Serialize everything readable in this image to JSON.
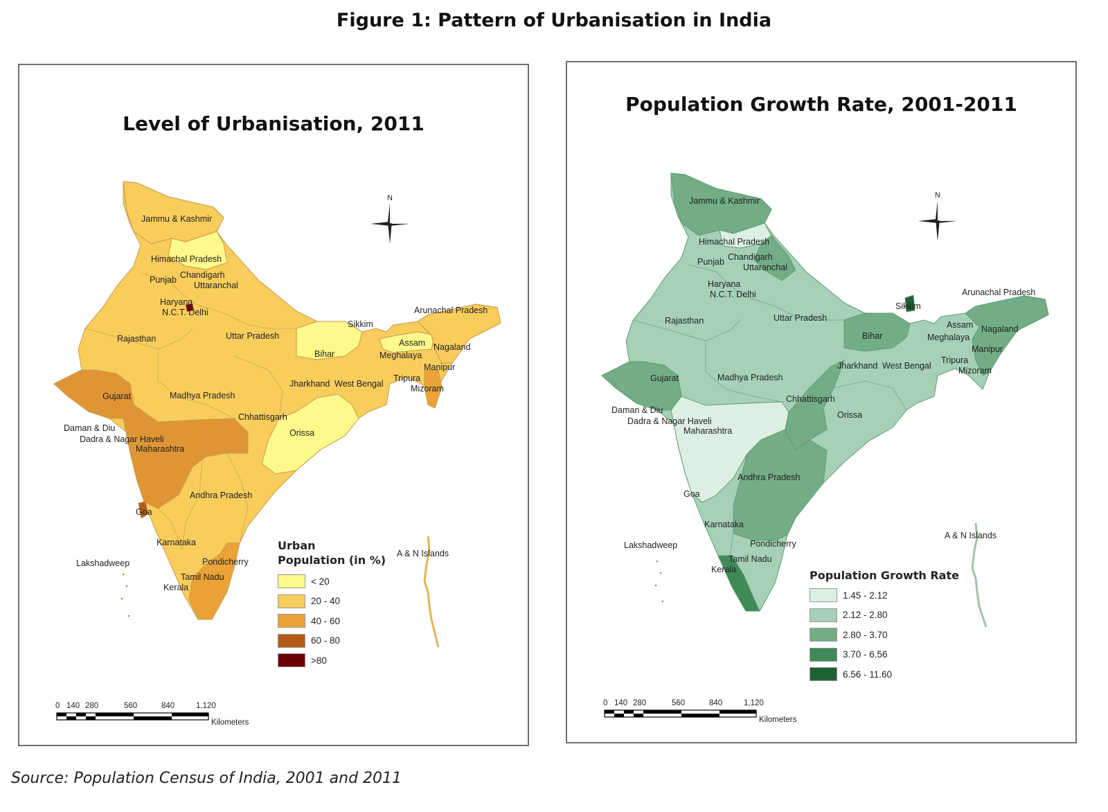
{
  "figure_title": "Figure 1: Pattern of Urbanisation in India",
  "source": "Source: Population Census of India, 2001 and 2011",
  "left_map": {
    "title": "Level of Urbanisation, 2011",
    "legend_title_line1": "Urban",
    "legend_title_line2": "Population (in %)",
    "legend": [
      {
        "label": "< 20",
        "color": "#fdf98a"
      },
      {
        "label": "20 - 40",
        "color": "#f8cd5c"
      },
      {
        "label": "40 - 60",
        "color": "#eba237"
      },
      {
        "label": "60 - 80",
        "color": "#b35b16"
      },
      {
        "label": ">80",
        "color": "#6b0007"
      }
    ],
    "state_colors": {
      "base": "#f8cd5c",
      "jk": "#f8cd5c",
      "hp": "#fdf98a",
      "guj": "#e09535",
      "mh": "#e09535",
      "tn": "#eba237",
      "bihar": "#fdf98a",
      "orissa": "#fdf98a",
      "assam": "#fdf98a",
      "ne": "#f8cd5c",
      "mizoram": "#eba237",
      "goa": "#b35b16",
      "delhi": "#6b0007",
      "islands": "#e2b453"
    },
    "labels": {
      "jk": "Jammu & Kashmir",
      "hp": "Himachal Pradesh",
      "punjab": "Punjab",
      "chandigarh": "Chandigarh",
      "uttaranchal": "Uttaranchal",
      "haryana": "Haryana",
      "delhi": "N.C.T. Delhi",
      "rajasthan": "Rajasthan",
      "up": "Uttar Pradesh",
      "sikkim": "Sikkim",
      "arunachal": "Arunachal Pradesh",
      "bihar": "Bihar",
      "assam": "Assam",
      "nagaland": "Nagaland",
      "meghalaya": "Meghalaya",
      "manipur": "Manipur",
      "jharkhand": "Jharkhand",
      "wb": "West Bengal",
      "tripura": "Tripura",
      "mizoram": "Mizoram",
      "gujarat": "Gujarat",
      "mp": "Madhya Pradesh",
      "chhattisgarh": "Chhattisgarh",
      "daman": "Daman & Diu",
      "dadra": "Dadra & Nagar Haveli",
      "orissa": "Orissa",
      "maharashtra": "Maharashtra",
      "ap": "Andhra Pradesh",
      "goa": "Goa",
      "karnataka": "Karnataka",
      "lakshadweep": "Lakshadweep",
      "pondicherry": "Pondicherry",
      "tn": "Tamil Nadu",
      "kerala": "Kerala",
      "an": "A & N Islands"
    },
    "compass": "N",
    "scale_ticks": [
      "0",
      "140",
      "280",
      "560",
      "840",
      "1,120"
    ],
    "scale_unit": "Kilometers"
  },
  "right_map": {
    "title": "Population Growth Rate, 2001-2011",
    "legend_title": "Population Growth Rate",
    "legend": [
      {
        "label": "1.45 - 2.12",
        "color": "#dcefe2"
      },
      {
        "label": "2.12 - 2.80",
        "color": "#a6d1b6"
      },
      {
        "label": "2.80 - 3.70",
        "color": "#72ad86"
      },
      {
        "label": "3.70 - 6.56",
        "color": "#3f8a58"
      },
      {
        "label": "6.56 - 11.60",
        "color": "#1d6233"
      }
    ],
    "state_colors": {
      "base": "#a6d1b6",
      "jk": "#72ad86",
      "hp": "#dcefe2",
      "punjab": "#a6d1b6",
      "uttaranchal": "#72ad86",
      "gujarat": "#72ad86",
      "mh": "#dcefe2",
      "chhattisgarh": "#72ad86",
      "bihar": "#72ad86",
      "ap": "#72ad86",
      "kerala": "#3f8a58",
      "sikkim": "#1d6233",
      "ne": "#72ad86",
      "islands": "#9cc4a9"
    },
    "labels": {
      "jk": "Jammu & Kashmir",
      "hp": "Himachal Pradesh",
      "punjab": "Punjab",
      "chandigarh": "Chandigarh",
      "uttaranchal": "Uttaranchal",
      "haryana": "Haryana",
      "delhi": "N.C.T. Delhi",
      "rajasthan": "Rajasthan",
      "up": "Uttar Pradesh",
      "sikkim": "Sikkim",
      "arunachal": "Arunachal Pradesh",
      "bihar": "Bihar",
      "assam": "Assam",
      "nagaland": "Nagaland",
      "meghalaya": "Meghalaya",
      "manipur": "Manipur",
      "jharkhand": "Jharkhand",
      "wb": "West Bengal",
      "tripura": "Tripura",
      "mizoram": "Mizoram",
      "gujarat": "Gujarat",
      "mp": "Madhya Pradesh",
      "chhattisgarh": "Chhattisgarh",
      "daman": "Daman & Diu",
      "dadra": "Dadra & Nagar Haveli",
      "orissa": "Orissa",
      "maharashtra": "Maharashtra",
      "ap": "Andhra Pradesh",
      "goa": "Goa",
      "karnataka": "Karnataka",
      "lakshadweep": "Lakshadweep",
      "pondicherry": "Pondicherry",
      "tn": "Tamil Nadu",
      "kerala": "Kerala",
      "an": "A & N Islands"
    },
    "compass": "N",
    "scale_ticks": [
      "0",
      "140",
      "280",
      "560",
      "840",
      "1,120"
    ],
    "scale_unit": "Kilometers"
  }
}
